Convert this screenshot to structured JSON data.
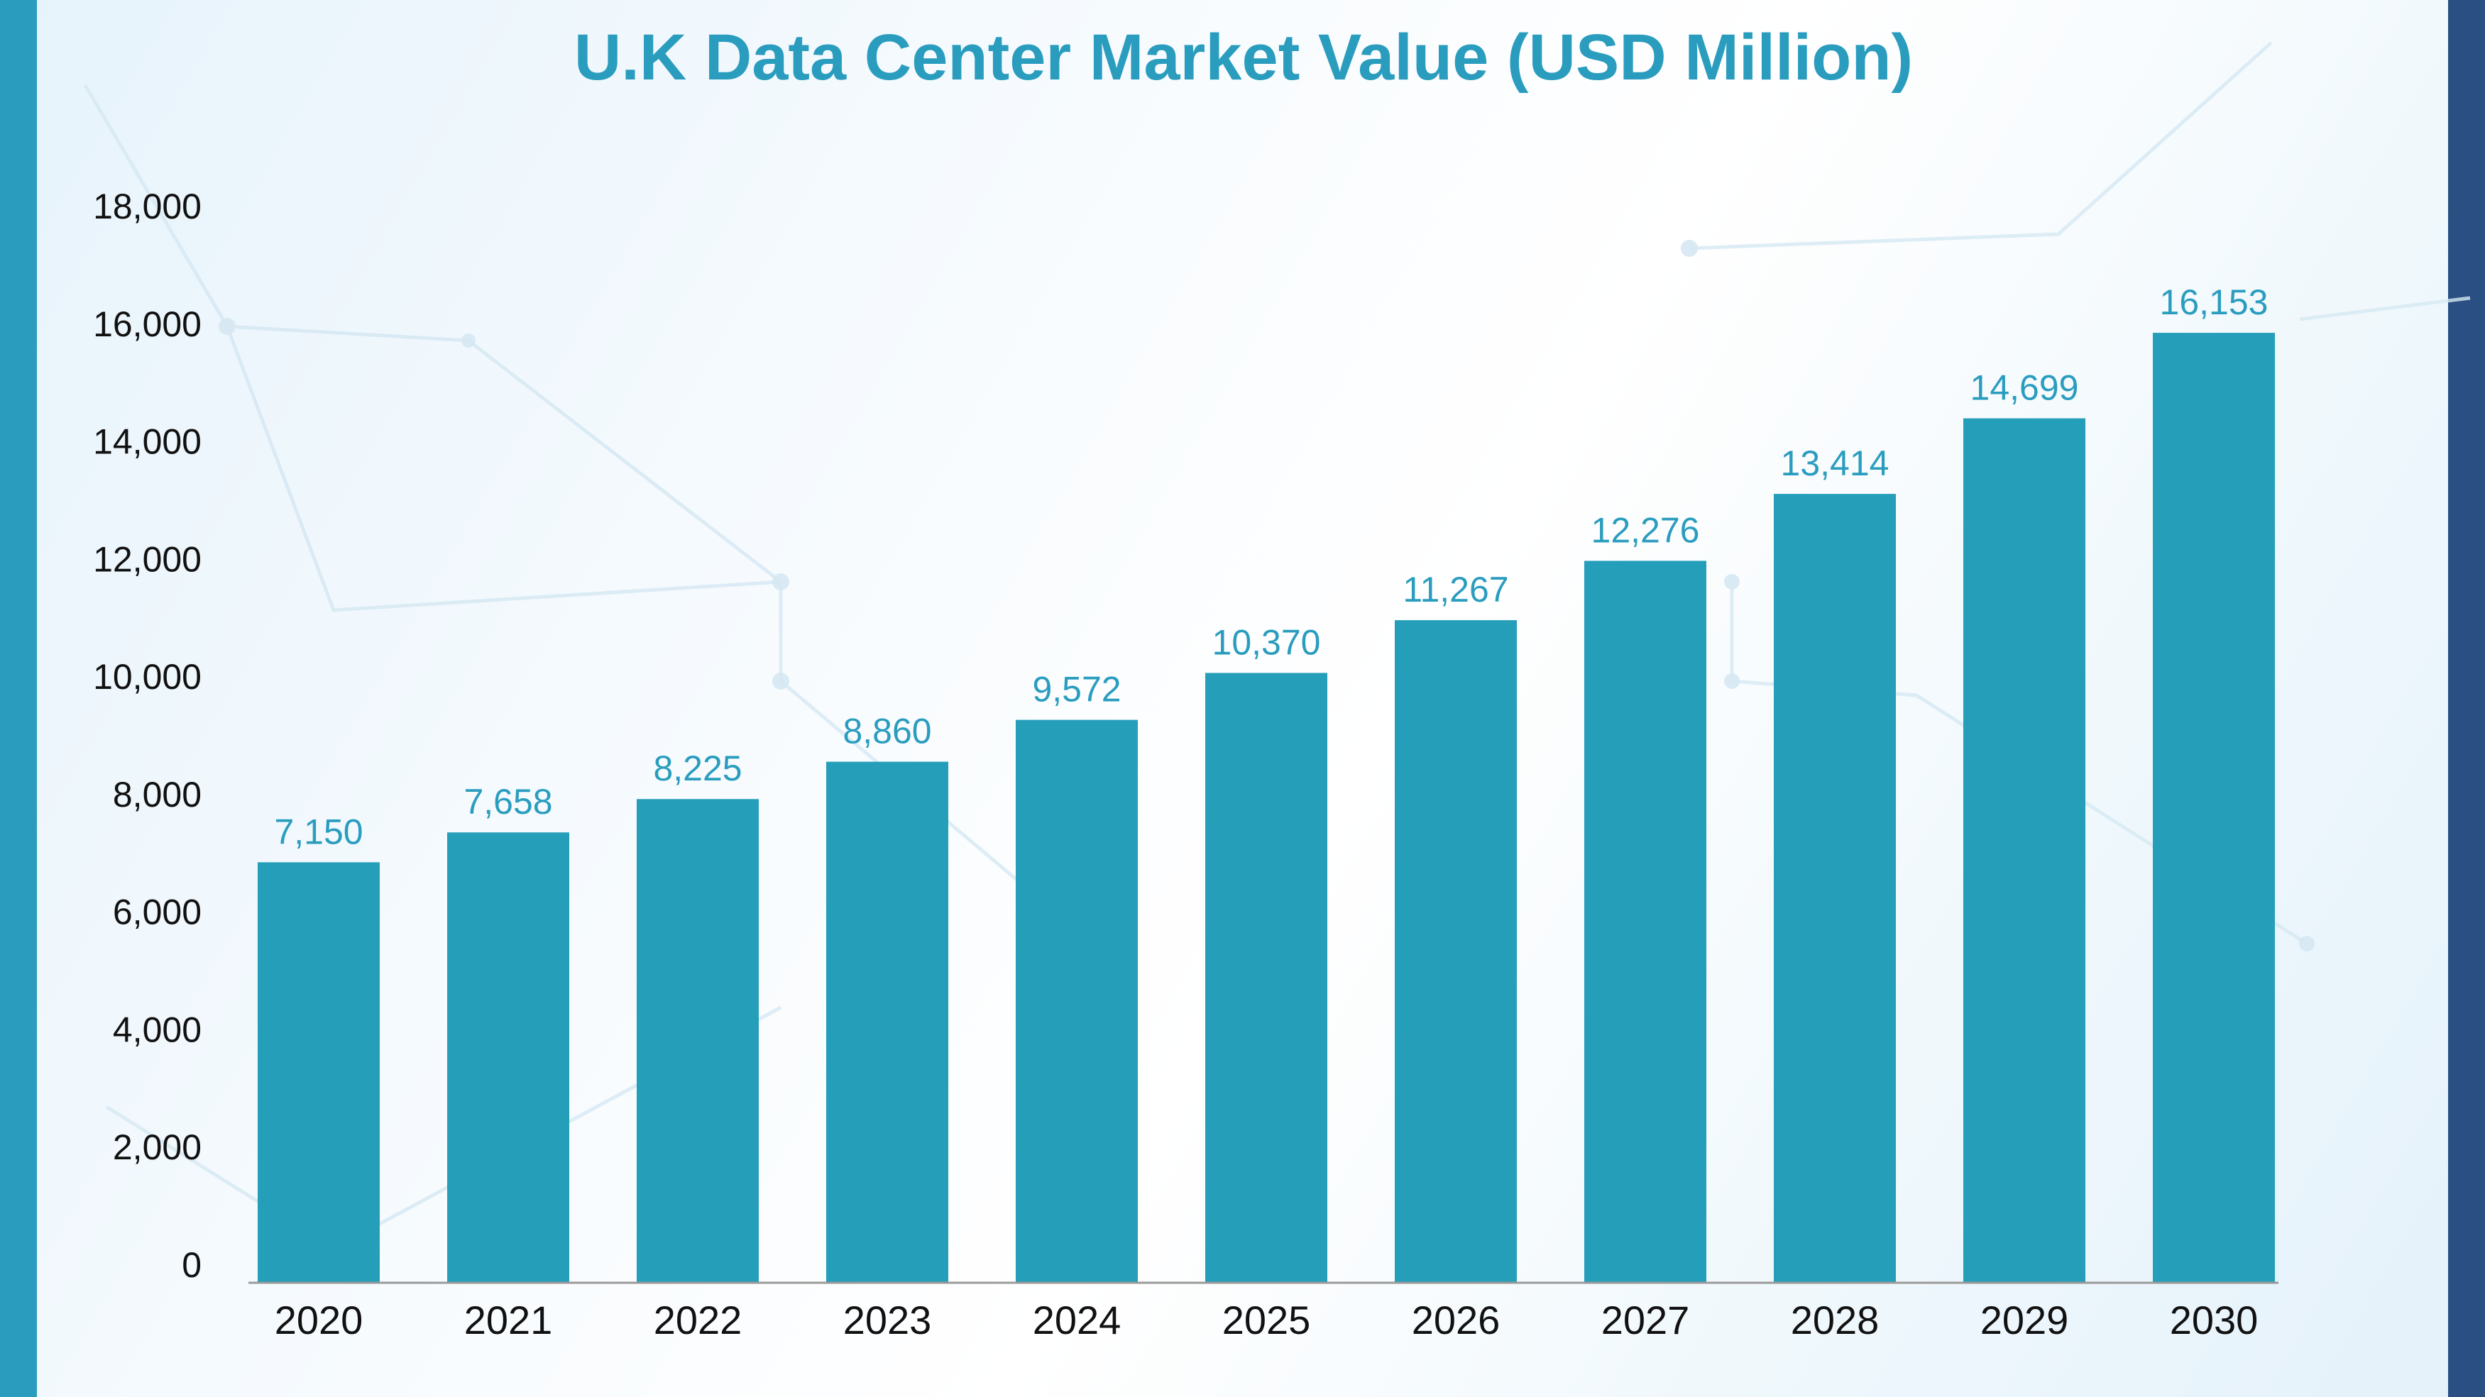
{
  "colors": {
    "bar": "#259eba",
    "title": "#2a9dbf",
    "value_label": "#2a9dbf",
    "left_band": "#2a9dbf",
    "right_band": "#2a4f82"
  },
  "chart_data": {
    "type": "bar",
    "title": "U.K Data Center Market Value (USD Million)",
    "xlabel": "",
    "ylabel": "",
    "categories": [
      "2020",
      "2021",
      "2022",
      "2023",
      "2024",
      "2025",
      "2026",
      "2027",
      "2028",
      "2029",
      "2030"
    ],
    "values": [
      7150,
      7658,
      8225,
      8860,
      9572,
      10370,
      11267,
      12276,
      13414,
      14699,
      16153
    ],
    "value_labels": [
      "7,150",
      "7,658",
      "8,225",
      "8,860",
      "9,572",
      "10,370",
      "11,267",
      "12,276",
      "13,414",
      "14,699",
      "16,153"
    ],
    "yticks": [
      0,
      2000,
      4000,
      6000,
      8000,
      10000,
      12000,
      14000,
      16000,
      18000
    ],
    "ytick_labels": [
      "0",
      "2,000",
      "4,000",
      "6,000",
      "8,000",
      "10,000",
      "12,000",
      "14,000",
      "16,000",
      "18,000"
    ],
    "ylim": [
      0,
      18000
    ],
    "grid": false,
    "legend": "none"
  }
}
